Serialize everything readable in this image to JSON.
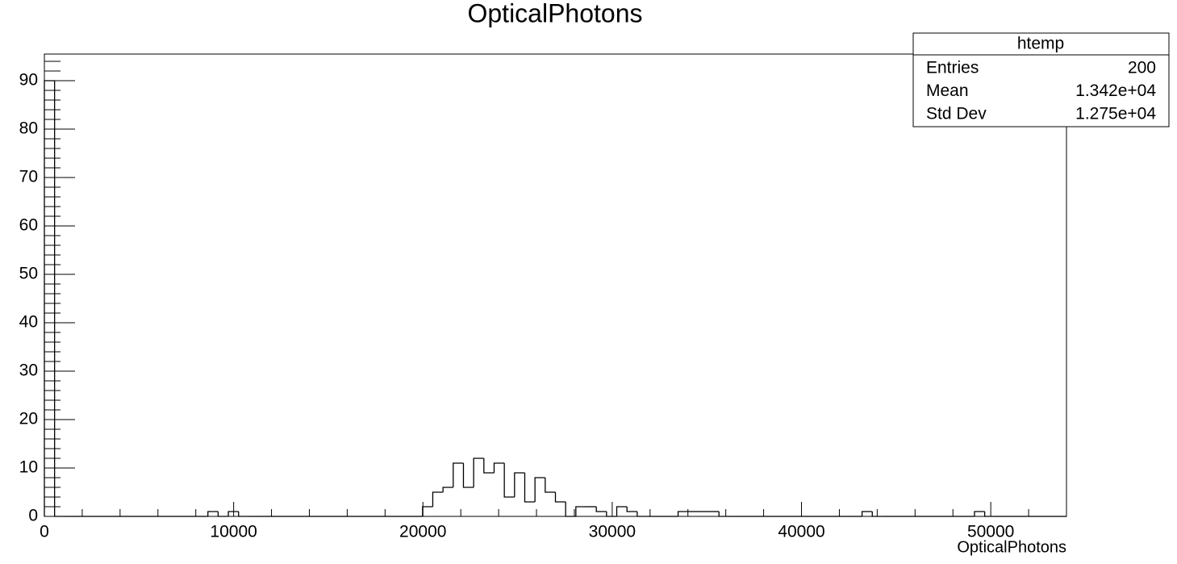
{
  "chart_data": {
    "type": "histogram",
    "title": "OpticalPhotons",
    "x_label": "OpticalPhotons",
    "bins": [
      0,
      540,
      1080,
      1620,
      2160,
      2700,
      3240,
      3780,
      4320,
      4860,
      5400,
      5940,
      6480,
      7020,
      7560,
      8100,
      8640,
      9180,
      9720,
      10260,
      10800,
      11340,
      11880,
      12420,
      12960,
      13500,
      14040,
      14580,
      15120,
      15660,
      16200,
      16740,
      17280,
      17820,
      18360,
      18900,
      19440,
      19980,
      20520,
      21060,
      21600,
      22140,
      22680,
      23220,
      23760,
      24300,
      24840,
      25380,
      25920,
      26460,
      27000,
      27540,
      28080,
      28620,
      29160,
      29700,
      30240,
      30780,
      31320,
      31860,
      32400,
      32940,
      33480,
      34020,
      34560,
      35100,
      35640,
      36180,
      36720,
      37260,
      37800,
      38340,
      38880,
      39420,
      39960,
      40500,
      41040,
      41580,
      42120,
      42660,
      43200,
      43740,
      44280,
      44820,
      45360,
      45900,
      46440,
      46980,
      47520,
      48060,
      48600,
      49140,
      49680,
      50220,
      50760,
      51300,
      51840,
      52380,
      52920,
      53460,
      54000
    ],
    "values": [
      90,
      0,
      0,
      0,
      0,
      0,
      0,
      0,
      0,
      0,
      0,
      0,
      0,
      0,
      0,
      0,
      1,
      0,
      1,
      0,
      0,
      0,
      0,
      0,
      0,
      0,
      0,
      0,
      0,
      0,
      0,
      0,
      0,
      0,
      0,
      0,
      0,
      2,
      5,
      6,
      11,
      6,
      12,
      9,
      11,
      4,
      9,
      3,
      8,
      5,
      3,
      0,
      2,
      2,
      1,
      0,
      2,
      1,
      0,
      0,
      0,
      0,
      1,
      1,
      1,
      1,
      0,
      0,
      0,
      0,
      0,
      0,
      0,
      0,
      0,
      0,
      0,
      0,
      0,
      0,
      1,
      0,
      0,
      0,
      0,
      0,
      0,
      0,
      0,
      0,
      0,
      1,
      0,
      0,
      0,
      0,
      0,
      0,
      0,
      0
    ],
    "color": "#000000",
    "xlim": [
      0,
      54000
    ],
    "xticks": [
      0,
      10000,
      20000,
      30000,
      40000,
      50000
    ],
    "ylim": [
      0,
      95.5
    ],
    "yticks": [
      0,
      10,
      20,
      30,
      40,
      50,
      60,
      70,
      80,
      90
    ],
    "grid": false,
    "stats_box": {
      "title": "htemp",
      "rows": [
        [
          "Entries",
          "200"
        ],
        [
          "Mean",
          "1.342e+04"
        ],
        [
          "Std Dev",
          "1.275e+04"
        ]
      ]
    }
  }
}
